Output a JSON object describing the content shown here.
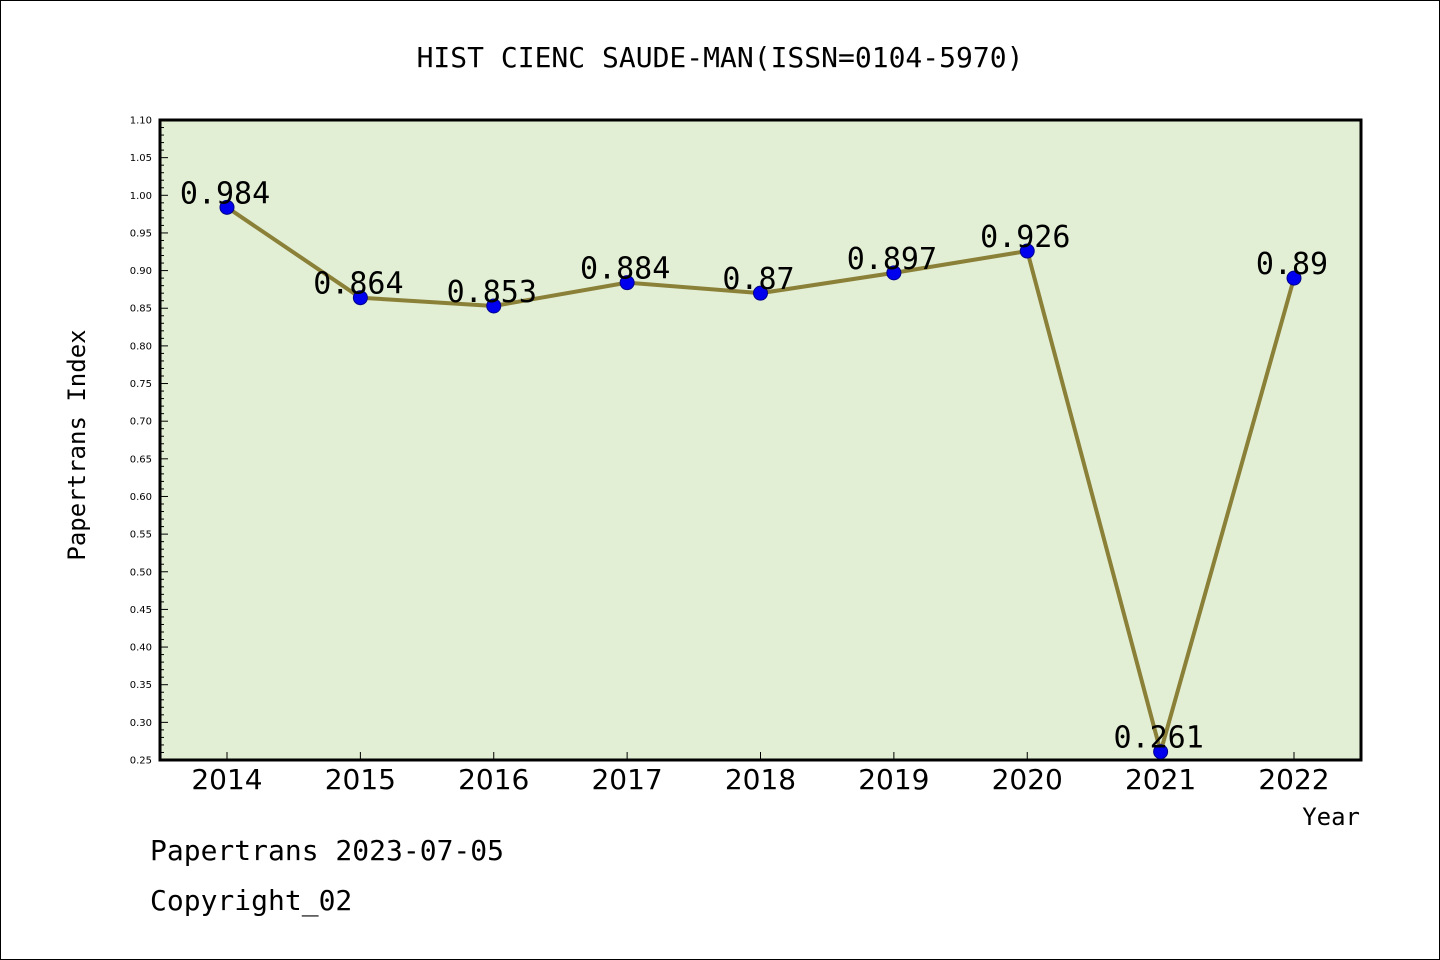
{
  "chart_data": {
    "type": "line",
    "title": "HIST CIENC SAUDE-MAN(ISSN=0104-5970)",
    "xlabel": "Year",
    "ylabel": "Papertrans Index",
    "categories": [
      "2014",
      "2015",
      "2016",
      "2017",
      "2018",
      "2019",
      "2020",
      "2021",
      "2022"
    ],
    "series": [
      {
        "values": [
          0.984,
          0.864,
          0.853,
          0.884,
          0.87,
          0.897,
          0.926,
          0.261,
          0.89
        ],
        "labels": [
          "0.984",
          "0.864",
          "0.853",
          "0.884",
          "0.87",
          "0.897",
          "0.926",
          "0.261",
          "0.89"
        ]
      }
    ],
    "ylim": [
      0.25,
      1.1
    ],
    "yticks": [
      "0.25",
      "0.30",
      "0.35",
      "0.40",
      "0.45",
      "0.50",
      "0.55",
      "0.60",
      "0.65",
      "0.70",
      "0.75",
      "0.80",
      "0.85",
      "0.90",
      "0.95",
      "1.00",
      "1.05",
      "1.10"
    ],
    "grid": false,
    "colors": {
      "plot_background": "#e2efd4",
      "line": "#8b8038",
      "marker": "#0000ee",
      "marker_edge": "#00008b"
    }
  },
  "footer": {
    "line1": "Papertrans 2023-07-05",
    "line2": "Copyright_02"
  }
}
